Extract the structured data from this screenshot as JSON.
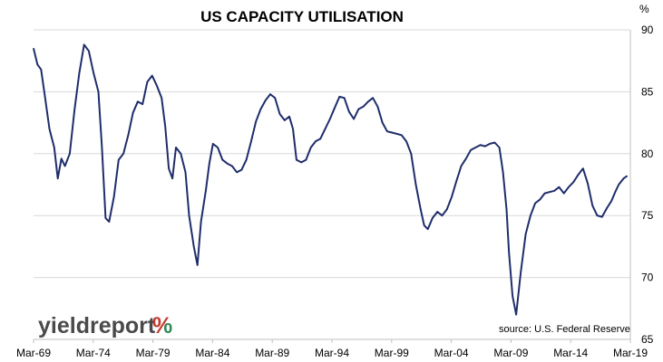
{
  "chart_data": {
    "type": "line",
    "title": "US CAPACITY UTILISATION",
    "unit": "%",
    "source": "source: U.S. Federal Reserve",
    "logo": {
      "text": "yieldreport",
      "suffix": "%",
      "suffix_colors": [
        "#c0392b",
        "#2e8b57"
      ]
    },
    "ylim": [
      65,
      90
    ],
    "y_ticks": [
      65,
      70,
      75,
      80,
      85,
      90
    ],
    "y_axis_position": "right",
    "x_ticks": [
      "Mar-69",
      "Mar-74",
      "Mar-79",
      "Mar-84",
      "Mar-89",
      "Mar-94",
      "Mar-99",
      "Mar-04",
      "Mar-09",
      "Mar-14",
      "Mar-19"
    ],
    "xlim": [
      1969.17,
      2019.17
    ],
    "grid": "horizontal",
    "line_color": "#1f2d6b",
    "series": [
      {
        "name": "",
        "x": [
          1969.17,
          1969.5,
          1969.8,
          1970.1,
          1970.5,
          1970.9,
          1971.2,
          1971.5,
          1971.8,
          1972.2,
          1972.6,
          1973.0,
          1973.4,
          1973.8,
          1974.2,
          1974.6,
          1974.9,
          1975.2,
          1975.5,
          1975.9,
          1976.3,
          1976.7,
          1977.1,
          1977.5,
          1977.9,
          1978.3,
          1978.7,
          1979.1,
          1979.5,
          1979.9,
          1980.2,
          1980.5,
          1980.8,
          1981.1,
          1981.5,
          1981.9,
          1982.2,
          1982.6,
          1982.9,
          1983.2,
          1983.6,
          1983.9,
          1984.2,
          1984.6,
          1985.0,
          1985.4,
          1985.8,
          1986.2,
          1986.6,
          1987.0,
          1987.4,
          1987.8,
          1988.2,
          1988.6,
          1989.0,
          1989.4,
          1989.8,
          1990.2,
          1990.6,
          1990.9,
          1991.2,
          1991.6,
          1992.0,
          1992.4,
          1992.8,
          1993.2,
          1993.6,
          1994.0,
          1994.4,
          1994.8,
          1995.2,
          1995.6,
          1996.0,
          1996.4,
          1996.8,
          1997.2,
          1997.6,
          1998.0,
          1998.4,
          1998.8,
          1999.2,
          1999.6,
          2000.0,
          2000.4,
          2000.8,
          2001.2,
          2001.6,
          2001.9,
          2002.2,
          2002.6,
          2003.0,
          2003.4,
          2003.8,
          2004.2,
          2004.6,
          2005.0,
          2005.4,
          2005.8,
          2006.2,
          2006.6,
          2007.0,
          2007.4,
          2007.8,
          2008.2,
          2008.5,
          2008.8,
          2009.0,
          2009.3,
          2009.6,
          2010.0,
          2010.4,
          2010.8,
          2011.2,
          2011.6,
          2012.0,
          2012.4,
          2012.8,
          2013.2,
          2013.6,
          2014.0,
          2014.4,
          2014.8,
          2015.2,
          2015.6,
          2016.0,
          2016.4,
          2016.8,
          2017.2,
          2017.6,
          2017.9,
          2018.2,
          2018.6,
          2018.9
        ],
        "values": [
          88.5,
          87.2,
          86.8,
          84.8,
          82.0,
          80.5,
          78.0,
          79.6,
          79.0,
          80.0,
          83.5,
          86.5,
          88.8,
          88.3,
          86.5,
          85.0,
          80.5,
          74.8,
          74.5,
          76.5,
          79.5,
          80.0,
          81.5,
          83.3,
          84.2,
          84.0,
          85.8,
          86.3,
          85.5,
          84.5,
          82.2,
          78.8,
          78.0,
          80.5,
          80.0,
          78.5,
          75.0,
          72.5,
          71.0,
          74.5,
          77.0,
          79.2,
          80.8,
          80.5,
          79.5,
          79.2,
          79.0,
          78.5,
          78.7,
          79.5,
          81.0,
          82.6,
          83.6,
          84.3,
          84.8,
          84.5,
          83.2,
          82.7,
          83.0,
          82.0,
          79.5,
          79.3,
          79.5,
          80.5,
          81.0,
          81.2,
          82.0,
          82.8,
          83.7,
          84.6,
          84.5,
          83.4,
          82.8,
          83.6,
          83.8,
          84.2,
          84.5,
          83.8,
          82.5,
          81.8,
          81.7,
          81.6,
          81.5,
          81.0,
          80.0,
          77.5,
          75.5,
          74.2,
          73.9,
          74.8,
          75.3,
          75.0,
          75.5,
          76.5,
          77.8,
          79.0,
          79.6,
          80.3,
          80.5,
          80.7,
          80.6,
          80.8,
          80.9,
          80.5,
          78.5,
          75.5,
          72.0,
          68.5,
          67.0,
          70.5,
          73.5,
          75.0,
          76.0,
          76.3,
          76.8,
          76.9,
          77.0,
          77.3,
          76.8,
          77.3,
          77.7,
          78.3,
          78.8,
          77.6,
          75.8,
          75.0,
          74.9,
          75.6,
          76.2,
          76.9,
          77.5,
          78.0,
          78.2
        ]
      }
    ]
  }
}
